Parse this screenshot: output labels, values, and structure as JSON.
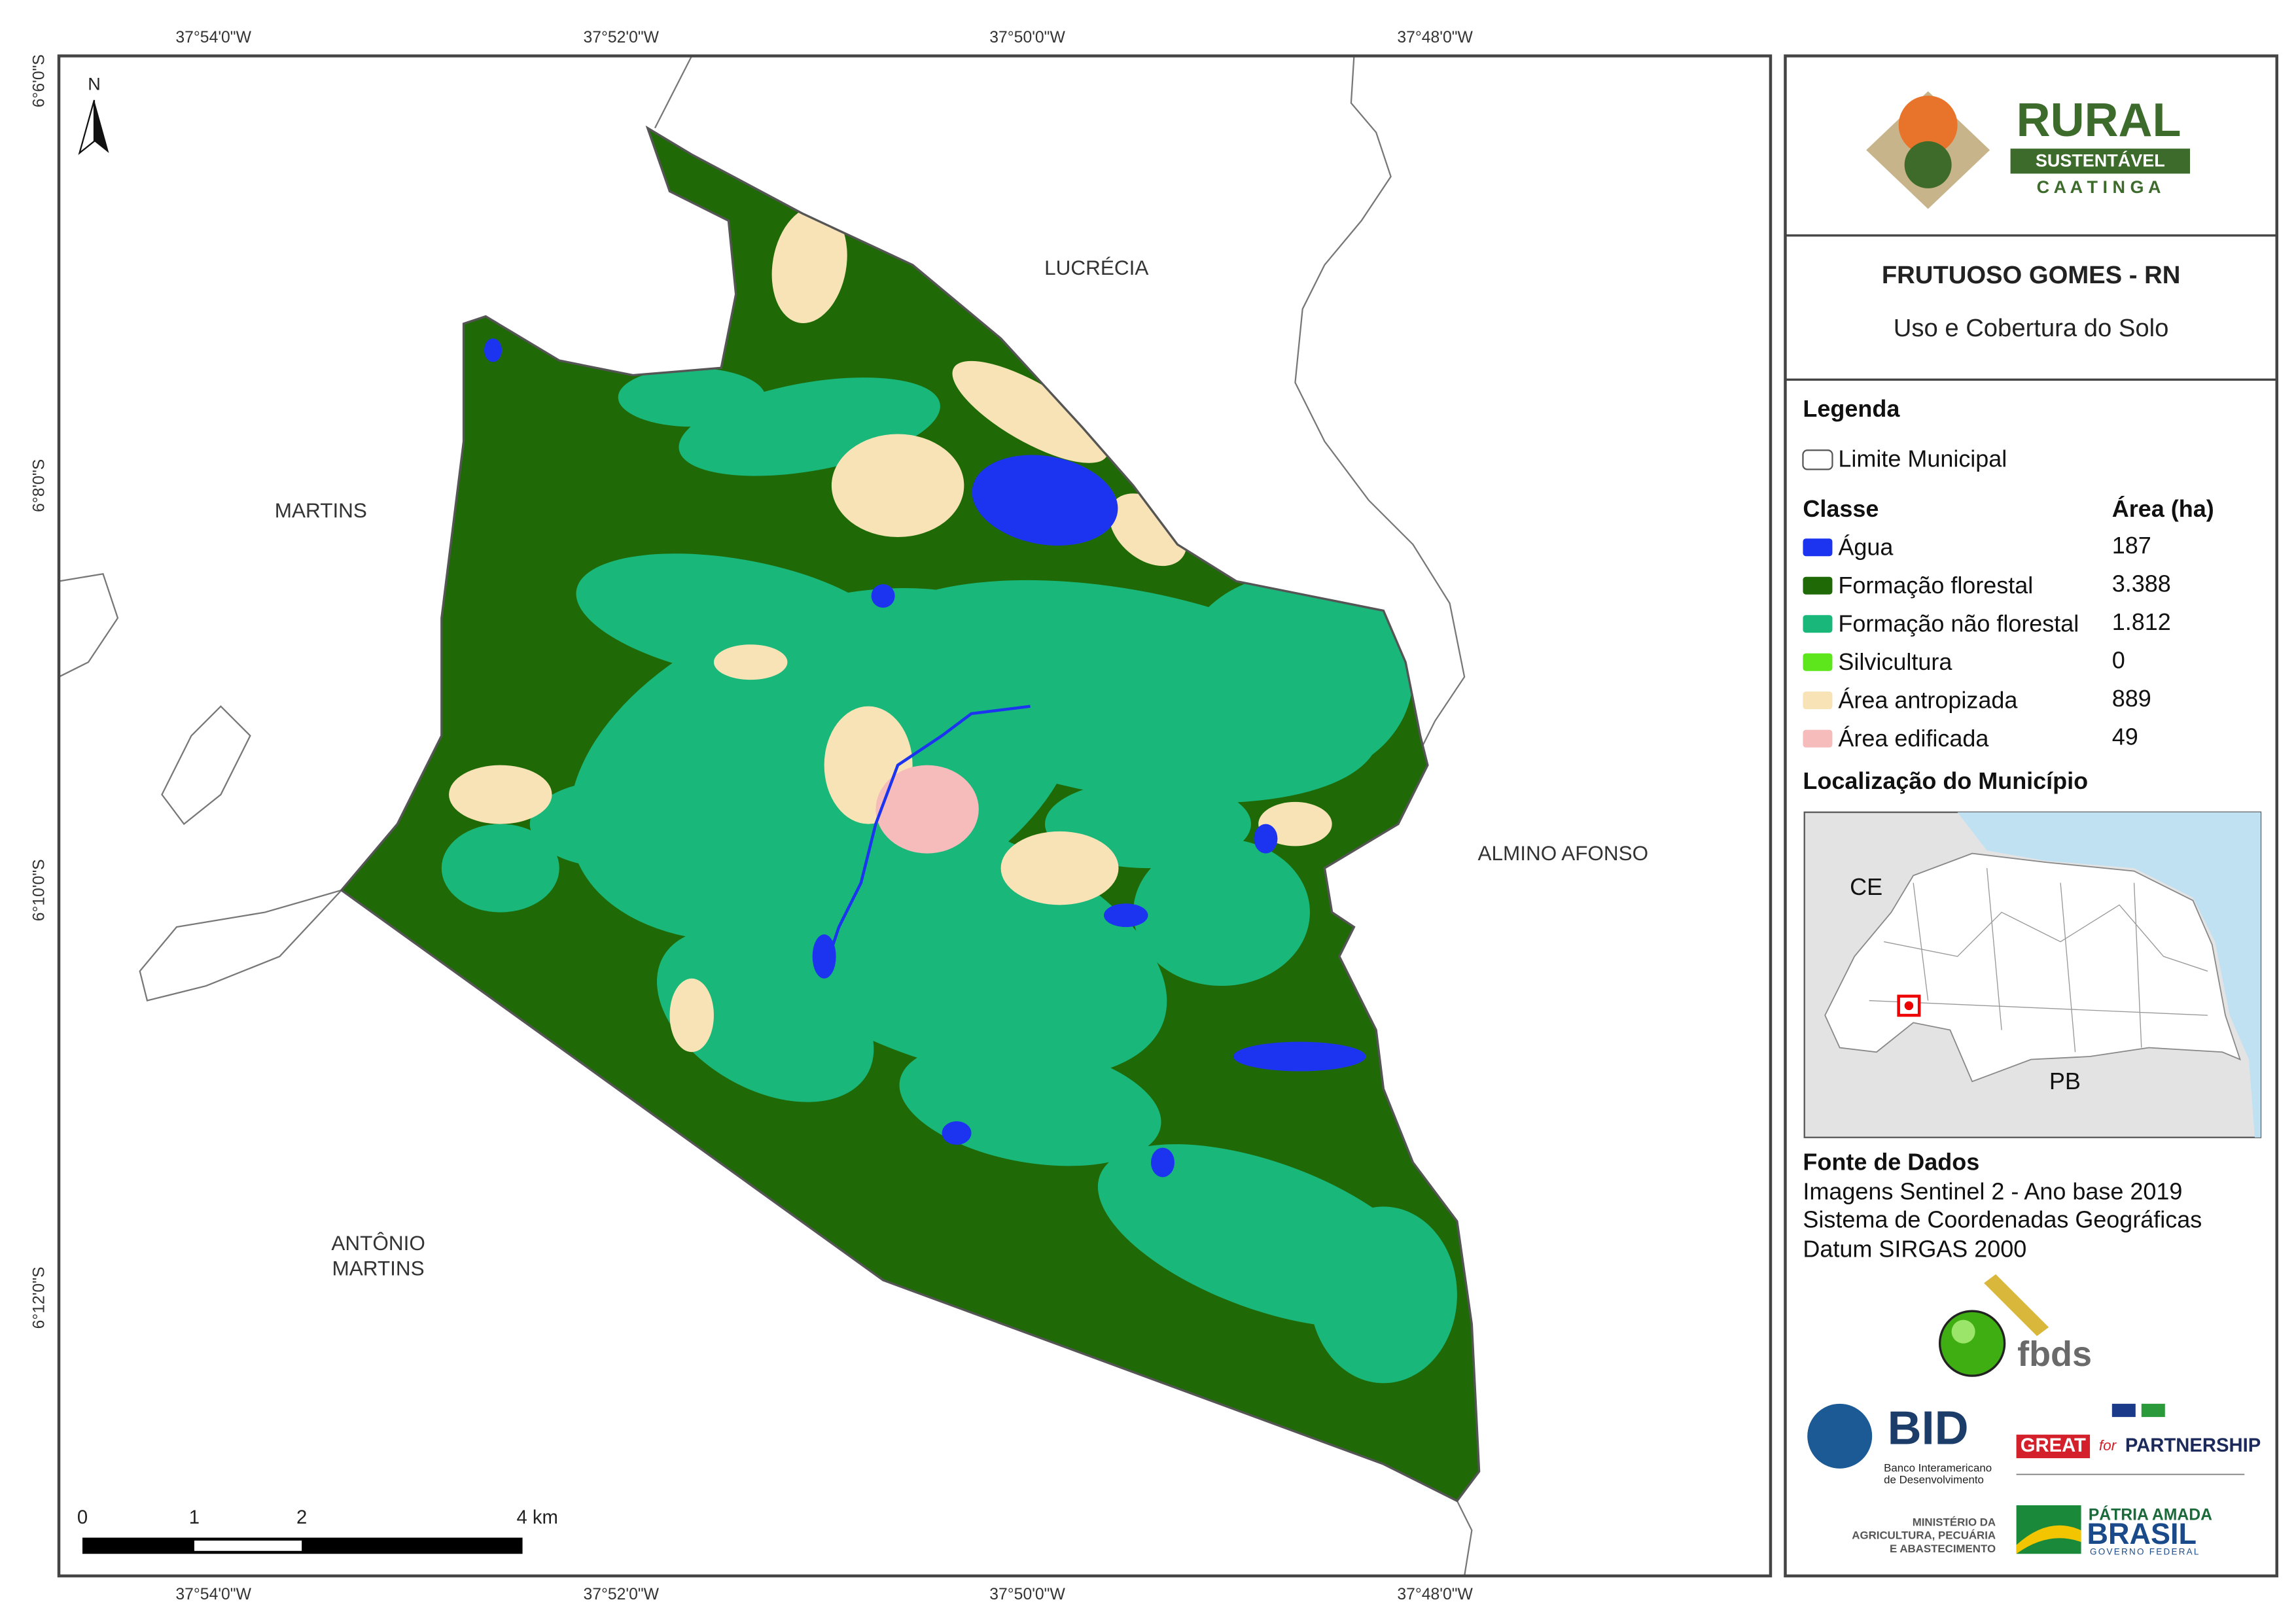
{
  "map": {
    "coordinates": {
      "top": [
        "37°54'0\"W",
        "37°52'0\"W",
        "37°50'0\"W",
        "37°48'0\"W"
      ],
      "bottom": [
        "37°54'0\"W",
        "37°52'0\"W",
        "37°50'0\"W",
        "37°48'0\"W"
      ],
      "left": [
        "6°6'0\"S",
        "6°8'0\"S",
        "6°10'0\"S",
        "6°12'0\"S"
      ]
    },
    "north": "N",
    "places": {
      "lucrecia": "LUCRÉCIA",
      "martins": "MARTINS",
      "almino_afonso": "ALMINO AFONSO",
      "antonio_martins": [
        "ANTÔNIO",
        "MARTINS"
      ]
    },
    "scale_bar": [
      "0",
      "1",
      "2",
      "4 km"
    ]
  },
  "panel": {
    "logo": {
      "rural": "RURAL",
      "sustentavel": "SUSTENTÁVEL",
      "caatinga": "C A A T I N G A"
    },
    "title": "FRUTUOSO GOMES - RN",
    "subtitle": "Uso e Cobertura do Solo",
    "legend": {
      "heading": "Legenda",
      "boundary": "Limite Municipal",
      "class_heading": "Classe",
      "area_heading": "Área (ha)",
      "classes": [
        {
          "label": "Água",
          "area": "187",
          "color": "#1c34f0"
        },
        {
          "label": "Formação florestal",
          "area": "3.388",
          "color": "#1f6a07"
        },
        {
          "label": "Formação não florestal",
          "area": "1.812",
          "color": "#19b87a"
        },
        {
          "label": "Silvicultura",
          "area": "0",
          "color": "#5ee61c"
        },
        {
          "label": "Área antropizada",
          "area": "889",
          "color": "#f7e3b6"
        },
        {
          "label": "Área edificada",
          "area": "49",
          "color": "#f6bcbc"
        }
      ]
    },
    "location": {
      "heading": "Localização do Município",
      "states": [
        "CE",
        "PB"
      ]
    },
    "sources": {
      "heading": "Fonte de Dados",
      "lines": [
        "Imagens Sentinel 2 - Ano base 2019",
        "Sistema de Coordenadas Geográficas",
        "Datum SIRGAS 2000"
      ]
    },
    "partners": {
      "fbds": "fbds",
      "bid": "BID",
      "bid_name": [
        "Banco Interamericano",
        "de Desenvolvimento"
      ],
      "great": "GREAT",
      "for": "for",
      "partnership": "PARTNERSHIP",
      "ministry": [
        "MINISTÉRIO DA",
        "AGRICULTURA, PECUÁRIA",
        "E ABASTECIMENTO"
      ],
      "patria": "PÁTRIA AMADA",
      "brasil": "BRASIL",
      "governo": "GOVERNO FEDERAL"
    }
  }
}
